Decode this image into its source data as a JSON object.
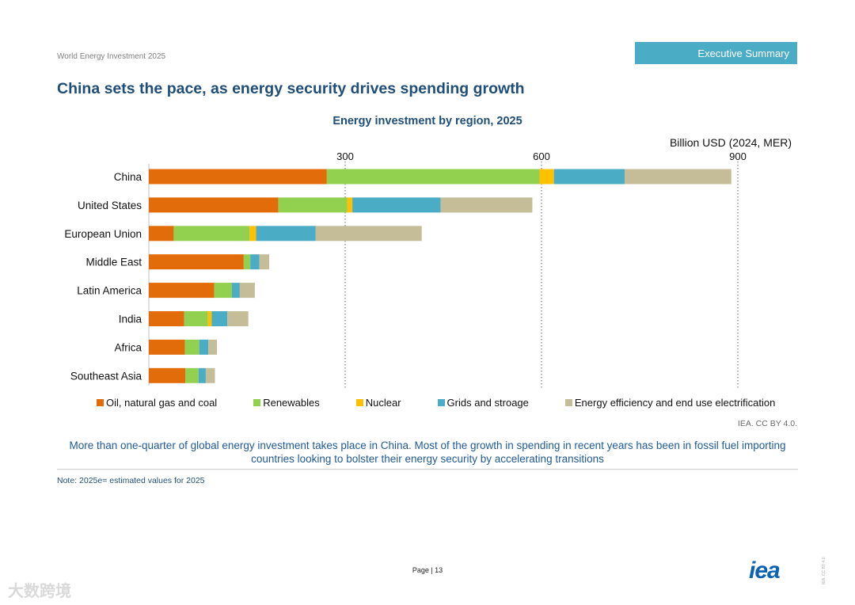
{
  "header": {
    "doc_title": "World Energy Investment 2025",
    "section_tab": "Executive Summary"
  },
  "headline": "China sets the pace, as energy security drives spending growth",
  "chart_data": {
    "type": "bar",
    "orientation": "horizontal",
    "stacked": true,
    "title": "Energy investment by region, 2025",
    "unit_label": "Billion USD (2024, MER)",
    "xlim": [
      0,
      900
    ],
    "xticks": [
      300,
      600,
      900
    ],
    "grid": "dotted vertical at ticks",
    "categories": [
      "China",
      "United States",
      "European Union",
      "Middle East",
      "Latin America",
      "India",
      "Africa",
      "Southeast Asia"
    ],
    "series": [
      {
        "name": "Oil, natural gas and coal",
        "color": "#e36c0a",
        "values": [
          272,
          198,
          38,
          145,
          100,
          54,
          55,
          56
        ]
      },
      {
        "name": "Renewables",
        "color": "#92d050",
        "values": [
          325,
          105,
          116,
          10,
          27,
          36,
          22,
          20
        ]
      },
      {
        "name": "Nuclear",
        "color": "#ffc000",
        "values": [
          22,
          8,
          10,
          0,
          0,
          6,
          0,
          0
        ]
      },
      {
        "name": "Grids and stroage",
        "color": "#4bacc6",
        "values": [
          108,
          135,
          91,
          14,
          12,
          24,
          14,
          11
        ]
      },
      {
        "name": "Energy efficiency and end use electrification",
        "color": "#c4bd97",
        "values": [
          163,
          140,
          162,
          15,
          23,
          32,
          13,
          14
        ]
      }
    ],
    "legend_position": "bottom"
  },
  "source": "IEA. CC BY 4.0.",
  "caption": "More than one-quarter of global energy investment takes place in China. Most of the growth in spending in recent years has been in fossil fuel importing countries looking to bolster their energy security by accelerating transitions",
  "note": "Note: 2025e= estimated values for 2025",
  "footer": {
    "page_label": "Page | 13",
    "logo": "iea",
    "license_vertical": "IEA. CC BY 4.0.",
    "watermark": "大数跨境"
  }
}
